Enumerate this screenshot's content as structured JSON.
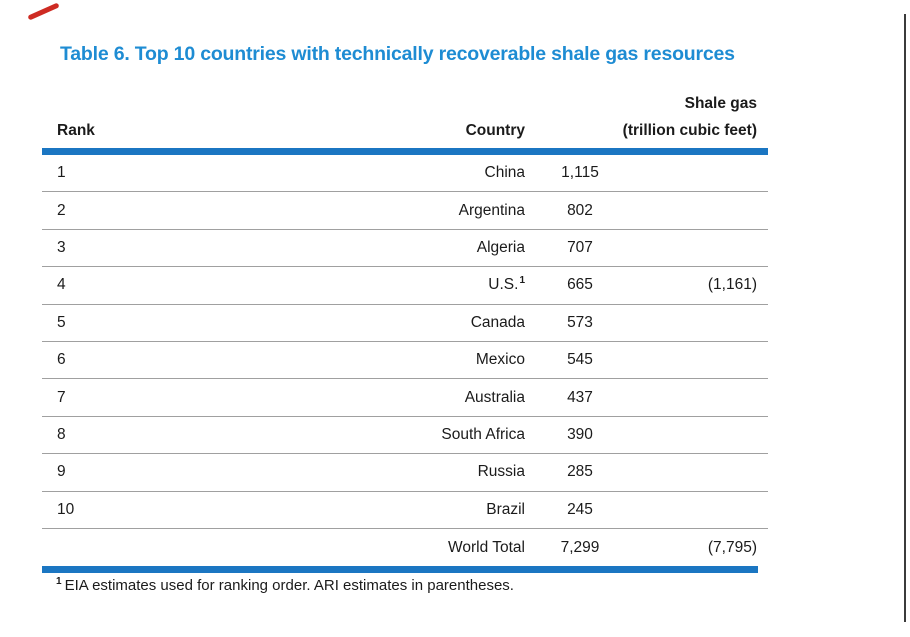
{
  "title": {
    "text": "Table 6. Top 10 countries with technically recoverable shale gas resources",
    "color": "#1E8CD3"
  },
  "table": {
    "header": {
      "rank": "Rank",
      "country": "Country",
      "unit_line1": "Shale gas",
      "unit_line2": "(trillion cubic feet)"
    },
    "rows": [
      {
        "rank": "1",
        "country": "China",
        "sup": "",
        "value": "1,115",
        "paren": ""
      },
      {
        "rank": "2",
        "country": "Argentina",
        "sup": "",
        "value": "802",
        "paren": ""
      },
      {
        "rank": "3",
        "country": "Algeria",
        "sup": "",
        "value": "707",
        "paren": ""
      },
      {
        "rank": "4",
        "country": "U.S.",
        "sup": "1",
        "value": "665",
        "paren": "(1,161)"
      },
      {
        "rank": "5",
        "country": "Canada",
        "sup": "",
        "value": "573",
        "paren": ""
      },
      {
        "rank": "6",
        "country": "Mexico",
        "sup": "",
        "value": "545",
        "paren": ""
      },
      {
        "rank": "7",
        "country": "Australia",
        "sup": "",
        "value": "437",
        "paren": ""
      },
      {
        "rank": "8",
        "country": "South Africa",
        "sup": "",
        "value": "390",
        "paren": ""
      },
      {
        "rank": "9",
        "country": "Russia",
        "sup": "",
        "value": "285",
        "paren": ""
      },
      {
        "rank": "10",
        "country": "Brazil",
        "sup": "",
        "value": "245",
        "paren": ""
      },
      {
        "rank": "",
        "country": "World Total",
        "sup": "",
        "value": "7,299",
        "paren": "(7,795)"
      }
    ],
    "accent_color": "#1B76C2",
    "separator_color": "#A0A0A0"
  },
  "footnote": {
    "sup": "1",
    "text": "EIA estimates used for ranking order. ARI estimates in parentheses."
  },
  "decorations": {
    "red_mark_color": "#CE2B23",
    "page_edge_color": "#3B3B3B"
  },
  "chart_data": {
    "type": "table",
    "title": "Table 6. Top 10 countries with technically recoverable shale gas resources",
    "columns": [
      "Rank",
      "Country",
      "Shale gas (trillion cubic feet)",
      "ARI estimate (parentheses)"
    ],
    "unit": "trillion cubic feet",
    "values": [
      [
        1,
        "China",
        1115,
        null
      ],
      [
        2,
        "Argentina",
        802,
        null
      ],
      [
        3,
        "Algeria",
        707,
        null
      ],
      [
        4,
        "U.S.",
        665,
        1161
      ],
      [
        5,
        "Canada",
        573,
        null
      ],
      [
        6,
        "Mexico",
        545,
        null
      ],
      [
        7,
        "Australia",
        437,
        null
      ],
      [
        8,
        "South Africa",
        390,
        null
      ],
      [
        9,
        "Russia",
        285,
        null
      ],
      [
        10,
        "Brazil",
        245,
        null
      ],
      [
        null,
        "World Total",
        7299,
        7795
      ]
    ],
    "footnote": "1 EIA estimates used for ranking order. ARI estimates in parentheses."
  }
}
